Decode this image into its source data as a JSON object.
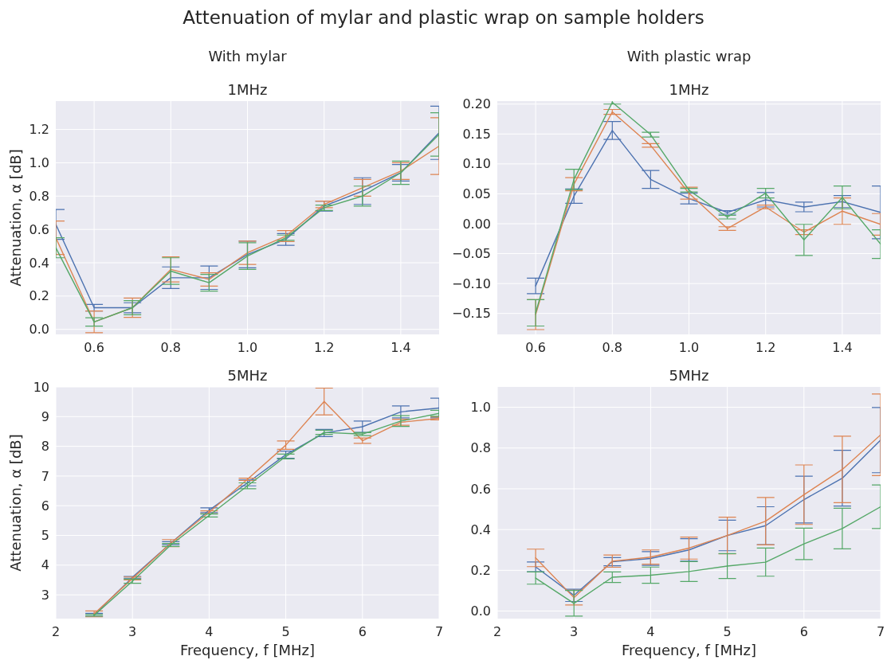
{
  "chart_data": [
    {
      "type": "other",
      "title": "Attenuation of mylar and plastic wrap on sample holders"
    },
    {
      "type": "line",
      "subtitle": "With mylar",
      "title": "1MHz",
      "ylabel": "Attenuation, α [dB]",
      "grid": true,
      "x": [
        0.5,
        0.6,
        0.7,
        0.8,
        0.9,
        1.0,
        1.1,
        1.2,
        1.3,
        1.4,
        1.5
      ],
      "xlim": [
        0.5,
        1.5
      ],
      "xticks": [
        0.6,
        0.8,
        {
          "value": 1,
          "label": "1.0"
        },
        1.2,
        1.4
      ],
      "ylim": [
        -0.03,
        1.37
      ],
      "yticks": [
        {
          "value": 0,
          "label": "0.0"
        },
        0.2,
        0.4,
        0.6,
        0.8,
        {
          "value": 1,
          "label": "1.0"
        },
        1.2
      ],
      "series": [
        {
          "color": "#4c72b0",
          "values": [
            0.63,
            0.13,
            0.13,
            0.31,
            0.31,
            0.45,
            0.54,
            0.74,
            0.83,
            0.94,
            1.18
          ],
          "errors": [
            0.09,
            0.02,
            0.03,
            0.065,
            0.07,
            0.08,
            0.035,
            0.03,
            0.08,
            0.05,
            0.16
          ]
        },
        {
          "color": "#dd8452",
          "values": [
            0.55,
            0.045,
            0.13,
            0.36,
            0.3,
            0.46,
            0.56,
            0.75,
            0.85,
            0.95,
            1.1
          ],
          "errors": [
            0.1,
            0.065,
            0.058,
            0.075,
            0.04,
            0.07,
            0.033,
            0.02,
            0.05,
            0.05,
            0.17
          ]
        },
        {
          "color": "#55a868",
          "values": [
            0.49,
            0.045,
            0.13,
            0.35,
            0.28,
            0.44,
            0.55,
            0.73,
            0.8,
            0.94,
            1.17
          ],
          "errors": [
            0.06,
            0.025,
            0.042,
            0.08,
            0.05,
            0.08,
            0.016,
            0.016,
            0.06,
            0.07,
            0.13
          ]
        }
      ]
    },
    {
      "type": "line",
      "subtitle": "With plastic wrap",
      "title": "1MHz",
      "grid": true,
      "x": [
        0.6,
        0.7,
        0.8,
        0.9,
        1.0,
        1.1,
        1.2,
        1.3,
        1.4,
        1.5
      ],
      "xlim": [
        0.5,
        1.5
      ],
      "xticks": [
        0.6,
        0.8,
        {
          "value": 1,
          "label": "1.0"
        },
        1.2,
        1.4
      ],
      "ylim": [
        -0.185,
        0.205
      ],
      "yticks": [
        {
          "value": -0.15,
          "label": "−0.15"
        },
        {
          "value": -0.1,
          "label": "−0.10"
        },
        {
          "value": -0.05,
          "label": "−0.05"
        },
        {
          "value": 0,
          "label": "0.00"
        },
        0.05,
        {
          "value": 0.1,
          "label": "0.10"
        },
        0.15,
        {
          "value": 0.2,
          "label": "0.20"
        }
      ],
      "series": [
        {
          "color": "#4c72b0",
          "values": [
            -0.104,
            0.046,
            0.156,
            0.074,
            0.042,
            0.019,
            0.04,
            0.028,
            0.037,
            0.019
          ],
          "errors": [
            0.013,
            0.012,
            0.015,
            0.015,
            0.009,
            0.003,
            0.012,
            0.008,
            0.01,
            0.044
          ]
        },
        {
          "color": "#dd8452",
          "values": [
            -0.152,
            0.066,
            0.187,
            0.131,
            0.051,
            -0.008,
            0.028,
            -0.014,
            0.021,
            -0.001
          ],
          "errors": [
            0.025,
            0.011,
            0.004,
            0.003,
            0.01,
            0.003,
            0.003,
            0.004,
            0.022,
            0.018
          ]
        },
        {
          "color": "#55a868",
          "values": [
            -0.149,
            0.074,
            0.203,
            0.149,
            0.056,
            0.011,
            0.051,
            -0.027,
            0.044,
            -0.034
          ],
          "errors": [
            0.022,
            0.017,
            0.003,
            0.004,
            0.003,
            0.003,
            0.008,
            0.026,
            0.019,
            0.024
          ]
        }
      ]
    },
    {
      "type": "line",
      "title": "5MHz",
      "xlabel": "Frequency, f [MHz]",
      "ylabel": "Attenuation, α [dB]",
      "grid": true,
      "x": [
        2.5,
        3,
        3.5,
        4,
        4.5,
        5,
        5.5,
        6,
        6.5,
        7
      ],
      "xlim": [
        2,
        7
      ],
      "xticks": [
        2,
        3,
        4,
        5,
        6,
        7
      ],
      "ylim": [
        2.2,
        10
      ],
      "yticks": [
        3,
        4,
        5,
        6,
        7,
        8,
        9,
        10
      ],
      "series": [
        {
          "color": "#4c72b0",
          "values": [
            2.33,
            3.59,
            4.74,
            5.85,
            6.77,
            7.72,
            8.45,
            8.66,
            9.16,
            9.29
          ],
          "errors": [
            0.05,
            0.03,
            0.05,
            0.08,
            0.1,
            0.12,
            0.12,
            0.19,
            0.2,
            0.33
          ]
        },
        {
          "color": "#dd8452",
          "values": [
            2.36,
            3.55,
            4.74,
            5.78,
            6.89,
            8.04,
            9.51,
            8.19,
            8.81,
            8.94
          ],
          "errors": [
            0.1,
            0.05,
            0.12,
            0.05,
            0.04,
            0.14,
            0.45,
            0.09,
            0.1,
            0.05
          ]
        },
        {
          "color": "#55a868",
          "values": [
            2.31,
            3.46,
            4.68,
            5.67,
            6.67,
            7.66,
            8.47,
            8.41,
            8.85,
            9.11
          ],
          "errors": [
            0.03,
            0.07,
            0.05,
            0.05,
            0.1,
            0.08,
            0.07,
            0.05,
            0.18,
            0.1
          ]
        }
      ]
    },
    {
      "type": "line",
      "title": "5MHz",
      "xlabel": "Frequency, f [MHz]",
      "grid": true,
      "x": [
        2.5,
        3,
        3.5,
        4,
        4.5,
        5,
        5.5,
        6,
        6.5,
        7
      ],
      "xlim": [
        2,
        7
      ],
      "xticks": [
        2,
        3,
        4,
        5,
        6,
        7
      ],
      "ylim": [
        -0.037,
        1.1
      ],
      "yticks": [
        {
          "value": 0,
          "label": "0.0"
        },
        0.2,
        0.4,
        0.6,
        0.8,
        {
          "value": 1,
          "label": "1.0"
        }
      ],
      "series": [
        {
          "color": "#4c72b0",
          "values": [
            0.217,
            0.077,
            0.242,
            0.258,
            0.3,
            0.371,
            0.419,
            0.547,
            0.652,
            0.839
          ],
          "errors": [
            0.024,
            0.03,
            0.02,
            0.034,
            0.055,
            0.075,
            0.093,
            0.115,
            0.137,
            0.16
          ]
        },
        {
          "color": "#dd8452",
          "values": [
            0.261,
            0.066,
            0.245,
            0.265,
            0.309,
            0.371,
            0.441,
            0.571,
            0.695,
            0.865
          ],
          "errors": [
            0.043,
            0.036,
            0.03,
            0.035,
            0.054,
            0.09,
            0.116,
            0.146,
            0.163,
            0.2
          ]
        },
        {
          "color": "#55a868",
          "values": [
            0.162,
            0.038,
            0.166,
            0.176,
            0.194,
            0.221,
            0.24,
            0.33,
            0.405,
            0.512
          ],
          "errors": [
            0.03,
            0.063,
            0.026,
            0.04,
            0.049,
            0.061,
            0.069,
            0.077,
            0.1,
            0.107
          ]
        }
      ]
    }
  ]
}
